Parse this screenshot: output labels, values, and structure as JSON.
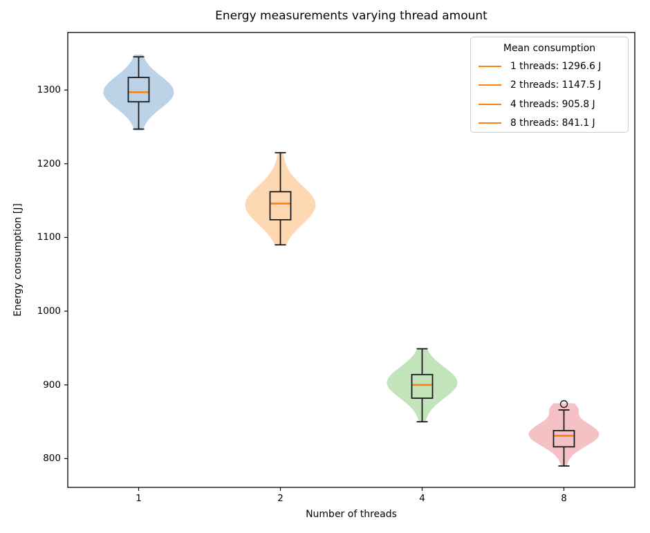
{
  "title": "Energy measurements varying thread amount",
  "xlabel": "Number of threads",
  "ylabel": "Energy consumption [J]",
  "legend": {
    "title": "Mean consumption",
    "line_color": "#ff7f0e",
    "entries": [
      {
        "label": "1 threads: 1296.6 J"
      },
      {
        "label": "2 threads: 1147.5 J"
      },
      {
        "label": "4 threads: 905.8 J"
      },
      {
        "label": "8 threads: 841.1 J"
      }
    ]
  },
  "chart_data": {
    "type": "violin",
    "title": "Energy measurements varying thread amount",
    "xlabel": "Number of threads",
    "ylabel": "Energy consumption [J]",
    "xlim": [
      0.5,
      4.5
    ],
    "ylim": [
      761,
      1378
    ],
    "grid": false,
    "legend_position": "upper right",
    "xticks": [
      {
        "pos": 1,
        "label": "1"
      },
      {
        "pos": 2,
        "label": "2"
      },
      {
        "pos": 3,
        "label": "4"
      },
      {
        "pos": 4,
        "label": "8"
      }
    ],
    "yticks": [
      {
        "value": 800,
        "label": "800"
      },
      {
        "value": 900,
        "label": "900"
      },
      {
        "value": 1000,
        "label": "1000"
      },
      {
        "value": 1100,
        "label": "1100"
      },
      {
        "value": 1200,
        "label": "1200"
      },
      {
        "value": 1300,
        "label": "1300"
      }
    ],
    "median_color": "#ff7f0e",
    "box_color": "#1a1a1a",
    "groups": [
      {
        "threads": "1",
        "position": 1,
        "mean": 1296.6,
        "median": 1297,
        "q1": 1284,
        "q3": 1317,
        "whisker_low": 1247,
        "whisker_high": 1345,
        "outliers": [],
        "violin_min": 1245,
        "violin_max": 1348,
        "fill": "#bcd2e7",
        "kde_modes": [
          {
            "v": 1297,
            "w": 1,
            "s": 22
          }
        ]
      },
      {
        "threads": "2",
        "position": 2,
        "mean": 1147.5,
        "median": 1146,
        "q1": 1124,
        "q3": 1162,
        "whisker_low": 1090,
        "whisker_high": 1215,
        "outliers": [],
        "violin_min": 1089,
        "violin_max": 1216,
        "fill": "#fdd8b2",
        "kde_modes": [
          {
            "v": 1144,
            "w": 1,
            "s": 26
          }
        ]
      },
      {
        "threads": "4",
        "position": 3,
        "mean": 905.8,
        "median": 900,
        "q1": 882,
        "q3": 914,
        "whisker_low": 850,
        "whisker_high": 949,
        "outliers": [],
        "violin_min": 849,
        "violin_max": 950,
        "fill": "#c3e3bb",
        "kde_modes": [
          {
            "v": 903,
            "w": 1,
            "s": 21
          }
        ]
      },
      {
        "threads": "8",
        "position": 4,
        "mean": 841.1,
        "median": 831,
        "q1": 816,
        "q3": 838,
        "whisker_low": 790,
        "whisker_high": 866,
        "outliers": [
          874
        ],
        "violin_min": 789,
        "violin_max": 875,
        "fill": "#f4c2c5",
        "kde_modes": [
          {
            "v": 833,
            "w": 1,
            "s": 16
          },
          {
            "v": 869,
            "w": 0.28,
            "s": 8
          }
        ]
      }
    ]
  }
}
